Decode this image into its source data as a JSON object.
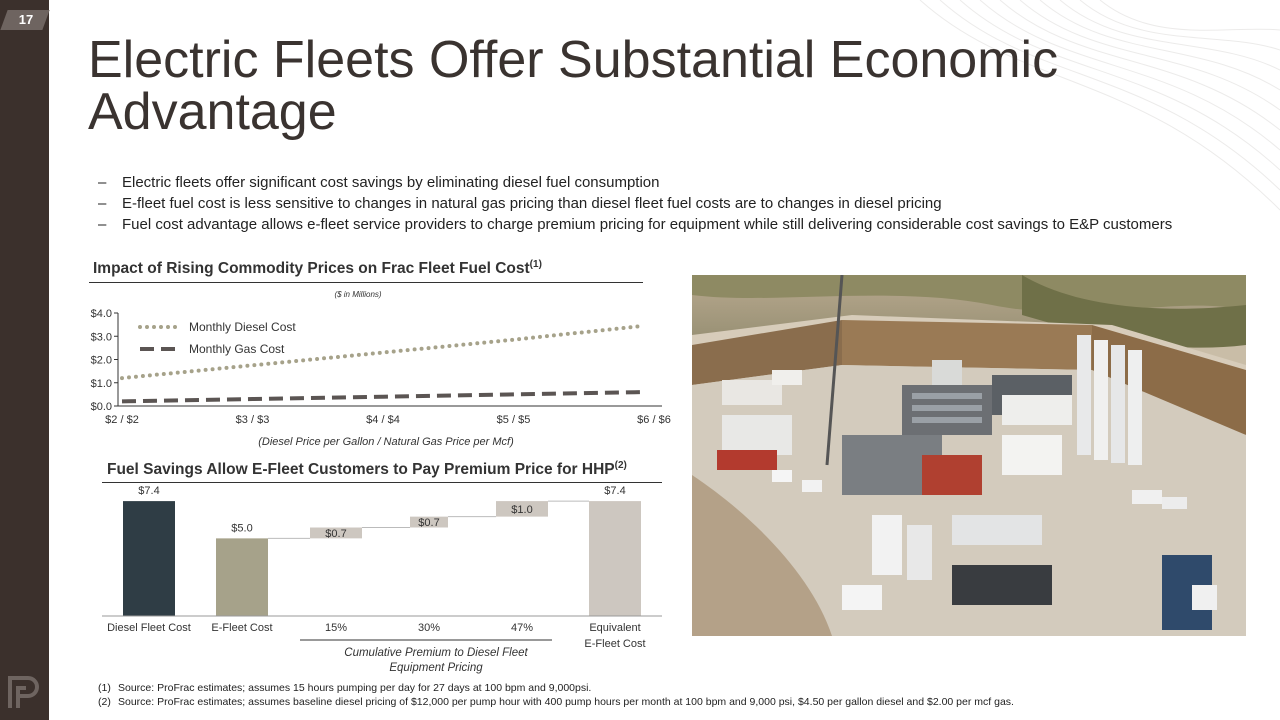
{
  "page_number": "17",
  "title": "Electric Fleets Offer Substantial Economic Advantage",
  "bullets": [
    "Electric fleets offer significant cost savings by eliminating diesel fuel consumption",
    "E-fleet fuel cost is less sensitive to changes in natural gas pricing than diesel fleet fuel costs are to changes in diesel pricing",
    "Fuel cost advantage allows e-fleet service providers to charge premium pricing for equipment while still delivering considerable cost savings to E&P customers"
  ],
  "bullet_marker": "–",
  "colors": {
    "sidebar": "#3b302c",
    "diesel_bar": "#2f3d45",
    "efleet_bar": "#a6a28a",
    "premium_bar": "#cdc7c0",
    "diesel_line": "#a6a28a",
    "gas_line": "#5b5553"
  },
  "chart_data": [
    {
      "type": "line",
      "title": "Impact of Rising Commodity Prices on Frac Fleet Fuel Cost",
      "title_sup": "(1)",
      "subtitle": "($ in Millions)",
      "xlabel": "(Diesel Price per Gallon / Natural Gas Price per Mcf)",
      "x": [
        "$2 / $2",
        "$3 / $3",
        "$4 / $4",
        "$5 / $5",
        "$6 / $6"
      ],
      "ylim": [
        0,
        4
      ],
      "yticks": [
        "$0.0",
        "$1.0",
        "$2.0",
        "$3.0",
        "$4.0"
      ],
      "series": [
        {
          "name": "Monthly Diesel Cost",
          "values": [
            1.2,
            1.75,
            2.3,
            2.85,
            3.45
          ]
        },
        {
          "name": "Monthly Gas Cost",
          "values": [
            0.2,
            0.3,
            0.4,
            0.5,
            0.6
          ]
        }
      ],
      "legend": "top-left"
    },
    {
      "type": "bar",
      "title": "Fuel Savings Allow E-Fleet Customers to Pay Premium Price for HHP",
      "title_sup": "(2)",
      "categories": [
        "Diesel Fleet Cost",
        "E-Fleet Cost",
        "15%",
        "30%",
        "47%",
        "Equivalent E-Fleet Cost"
      ],
      "labels": [
        "$7.4",
        "$5.0",
        "$0.7",
        "$0.7",
        "$1.0",
        "$7.4"
      ],
      "bars": [
        {
          "start": 0,
          "end": 7.4
        },
        {
          "start": 0,
          "end": 5.0
        },
        {
          "start": 5.0,
          "end": 5.7
        },
        {
          "start": 5.7,
          "end": 6.4
        },
        {
          "start": 6.4,
          "end": 7.4
        },
        {
          "start": 0,
          "end": 7.4
        }
      ],
      "group_label": "Cumulative Premium to Diesel Fleet Equipment Pricing",
      "ylim": [
        0,
        7.6
      ]
    }
  ],
  "footnotes": [
    {
      "num": "(1)",
      "text": "Source: ProFrac estimates; assumes 15 hours pumping per day for 27 days at 100 bpm and 9,000psi."
    },
    {
      "num": "(2)",
      "text": "Source: ProFrac estimates; assumes baseline diesel pricing of $12,000 per pump hour with 400 pump hours per month at 100 bpm and 9,000 psi, $4.50 per gallon diesel and $2.00 per mcf gas."
    }
  ]
}
